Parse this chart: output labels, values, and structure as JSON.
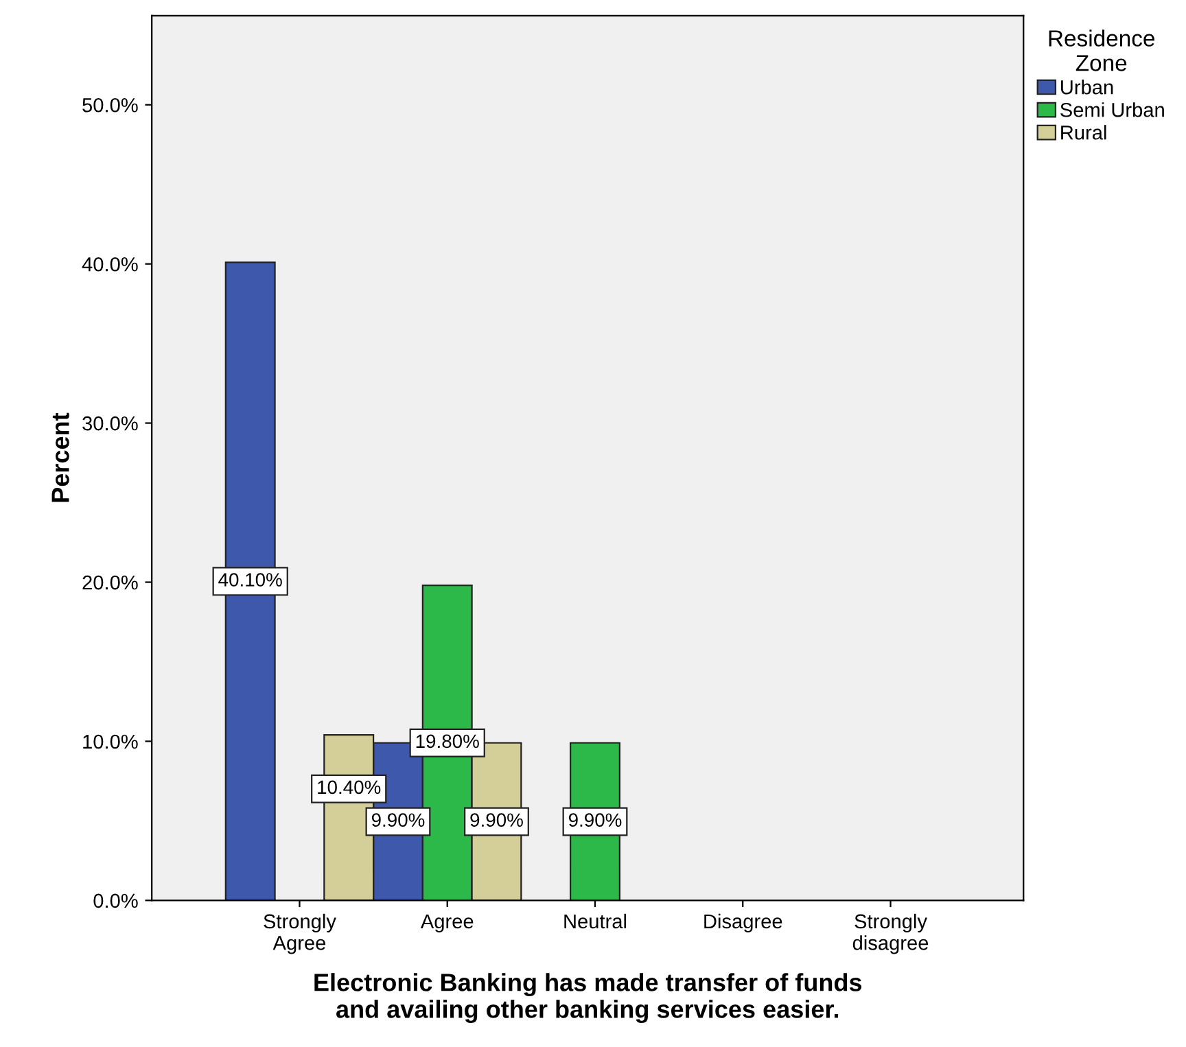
{
  "chart_data": {
    "type": "bar",
    "xlabel": "Electronic Banking has made transfer of funds\nand availing other banking services easier.",
    "ylabel": "Percent",
    "legend_title": "Residence\nZone",
    "categories": [
      "Strongly\nAgree",
      "Agree",
      "Neutral",
      "Disagree",
      "Strongly\ndisagree"
    ],
    "series": [
      {
        "name": "Urban",
        "color": "#3e58ac",
        "values": [
          40.1,
          9.9,
          null,
          null,
          null
        ],
        "value_labels": [
          "40.10%",
          "9.90%",
          null,
          null,
          null
        ]
      },
      {
        "name": "Semi Urban",
        "color": "#2db84a",
        "values": [
          null,
          19.8,
          9.9,
          null,
          null
        ],
        "value_labels": [
          null,
          "19.80%",
          "9.90%",
          null,
          null
        ]
      },
      {
        "name": "Rural",
        "color": "#d4cf98",
        "values": [
          10.4,
          9.9,
          null,
          null,
          null
        ],
        "value_labels": [
          "10.40%",
          "9.90%",
          null,
          null,
          null
        ]
      }
    ],
    "ylim": [
      0,
      55.6
    ],
    "yticks": [
      {
        "value": 0,
        "label": "0.0%"
      },
      {
        "value": 10,
        "label": "10.0%"
      },
      {
        "value": 20,
        "label": "20.0%"
      },
      {
        "value": 30,
        "label": "30.0%"
      },
      {
        "value": 40,
        "label": "40.0%"
      },
      {
        "value": 50,
        "label": "50.0%"
      }
    ],
    "grid": false,
    "legend": "top right"
  }
}
